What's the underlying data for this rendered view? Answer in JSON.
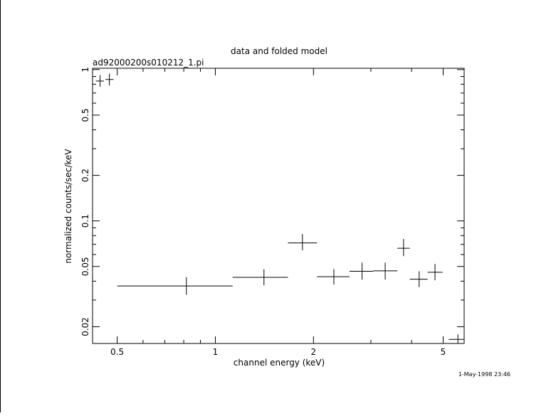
{
  "chart_data": {
    "type": "scatter",
    "title": "data and folded model",
    "subtitle": "ad92000200s010212_1.pi",
    "xlabel": "channel energy (keV)",
    "ylabel": "normalized counts/sec/keV",
    "timestamp": "1-May-1998 23:46",
    "x_scale": "log",
    "y_scale": "log",
    "xlim": [
      0.42,
      5.8
    ],
    "ylim": [
      0.0155,
      1.02
    ],
    "x_ticks": [
      {
        "value": 0.5,
        "label": "0.5"
      },
      {
        "value": 1,
        "label": "1"
      },
      {
        "value": 2,
        "label": "2"
      },
      {
        "value": 5,
        "label": "5"
      }
    ],
    "y_ticks": [
      {
        "value": 0.02,
        "label": "0.02"
      },
      {
        "value": 0.05,
        "label": "0.05"
      },
      {
        "value": 0.1,
        "label": "0.1"
      },
      {
        "value": 0.2,
        "label": "0.2"
      },
      {
        "value": 0.5,
        "label": "0.5"
      },
      {
        "value": 1,
        "label": "1"
      }
    ],
    "grid": false,
    "series": [
      {
        "marker": "crosshair error bars",
        "color": "#000000",
        "points": [
          {
            "x": 0.443,
            "y": 0.84,
            "xerr": [
              0.43,
              0.455
            ],
            "yerr": [
              0.77,
              0.92
            ]
          },
          {
            "x": 0.473,
            "y": 0.86,
            "xerr": [
              0.46,
              0.487
            ],
            "yerr": [
              0.785,
              0.94
            ]
          },
          {
            "x": 0.815,
            "y": 0.0372,
            "xerr": [
              0.5,
              1.13
            ],
            "yerr": [
              0.0325,
              0.0425
            ]
          },
          {
            "x": 1.41,
            "y": 0.0424,
            "xerr": [
              1.13,
              1.67
            ],
            "yerr": [
              0.0375,
              0.048
            ]
          },
          {
            "x": 1.85,
            "y": 0.0715,
            "xerr": [
              1.67,
              2.05
            ],
            "yerr": [
              0.064,
              0.082
            ]
          },
          {
            "x": 2.31,
            "y": 0.0428,
            "xerr": [
              2.05,
              2.58
            ],
            "yerr": [
              0.038,
              0.048
            ]
          },
          {
            "x": 2.82,
            "y": 0.0465,
            "xerr": [
              2.58,
              3.05
            ],
            "yerr": [
              0.041,
              0.053
            ]
          },
          {
            "x": 3.32,
            "y": 0.0468,
            "xerr": [
              3.05,
              3.62
            ],
            "yerr": [
              0.041,
              0.053
            ]
          },
          {
            "x": 3.78,
            "y": 0.066,
            "xerr": [
              3.62,
              3.95
            ],
            "yerr": [
              0.0585,
              0.076
            ]
          },
          {
            "x": 4.22,
            "y": 0.0412,
            "xerr": [
              3.95,
              4.48
            ],
            "yerr": [
              0.0365,
              0.0465
            ]
          },
          {
            "x": 4.72,
            "y": 0.0458,
            "xerr": [
              4.48,
              4.98
            ],
            "yerr": [
              0.0405,
              0.052
            ]
          },
          {
            "x": 5.55,
            "y": 0.0165,
            "xerr": [
              5.2,
              5.8
            ],
            "yerr": [
              0.0155,
              0.0178
            ]
          }
        ]
      }
    ]
  }
}
